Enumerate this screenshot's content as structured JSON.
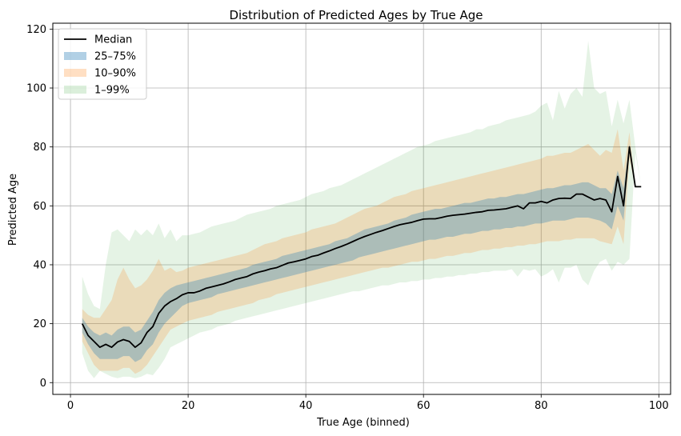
{
  "chart_data": {
    "type": "area",
    "title": "Distribution of Predicted Ages by True Age",
    "xlabel": "True Age (binned)",
    "ylabel": "Predicted Age",
    "xlim": [
      -3,
      102
    ],
    "ylim": [
      -4,
      122
    ],
    "xticks": [
      0,
      20,
      40,
      60,
      80,
      100
    ],
    "yticks": [
      0,
      20,
      40,
      60,
      80,
      100,
      120
    ],
    "grid": true,
    "legend_position": "top-left",
    "x": [
      2,
      3,
      4,
      5,
      6,
      7,
      8,
      9,
      10,
      11,
      12,
      13,
      14,
      15,
      16,
      17,
      18,
      19,
      20,
      21,
      22,
      23,
      24,
      25,
      26,
      27,
      28,
      29,
      30,
      31,
      32,
      33,
      34,
      35,
      36,
      37,
      38,
      39,
      40,
      41,
      42,
      43,
      44,
      45,
      46,
      47,
      48,
      49,
      50,
      51,
      52,
      53,
      54,
      55,
      56,
      57,
      58,
      59,
      60,
      61,
      62,
      63,
      64,
      65,
      66,
      67,
      68,
      69,
      70,
      71,
      72,
      73,
      74,
      75,
      76,
      77,
      78,
      79,
      80,
      81,
      82,
      83,
      84,
      85,
      86,
      87,
      88,
      89,
      90,
      91,
      92,
      93,
      94,
      95,
      96,
      97
    ],
    "series": [
      {
        "name": "Median",
        "kind": "line",
        "color": "#000000",
        "values": [
          20,
          16,
          14,
          12,
          13,
          12,
          13.8,
          14.6,
          14,
          12,
          13.5,
          17,
          19,
          23.5,
          26,
          27.5,
          28.5,
          29.8,
          30.5,
          30.5,
          31.1,
          32,
          32.5,
          33,
          33.5,
          34.2,
          35,
          35.5,
          36,
          36.9,
          37.5,
          38,
          38.6,
          39,
          39.8,
          40.6,
          41,
          41.5,
          42,
          42.8,
          43.2,
          44,
          44.7,
          45.5,
          46.2,
          47,
          47.9,
          48.8,
          49.6,
          50.3,
          51,
          51.6,
          52.3,
          53,
          53.6,
          54,
          54.4,
          55,
          55.5,
          55.6,
          55.6,
          56,
          56.5,
          56.8,
          57,
          57.2,
          57.5,
          57.8,
          58,
          58.5,
          58.6,
          58.8,
          59,
          59.5,
          60,
          59,
          61,
          61,
          61.5,
          61,
          62,
          62.5,
          62.6,
          62.5,
          64,
          64,
          63,
          62,
          62.5,
          62,
          58,
          70,
          60,
          80,
          66.5,
          66.5
        ]
      },
      {
        "name": "25–75%",
        "kind": "band",
        "color": "#1f77b4",
        "opacity": 0.3,
        "low": [
          17,
          13,
          10,
          8,
          8,
          8,
          8,
          9,
          9,
          7,
          8,
          11,
          13,
          17,
          20,
          22,
          24,
          26,
          27,
          27.5,
          28,
          28.5,
          29,
          30,
          30.5,
          31,
          31.5,
          32,
          32.5,
          33,
          33.5,
          34,
          34.5,
          35,
          35.5,
          36,
          36.5,
          37,
          37.5,
          38,
          38.5,
          39,
          39.5,
          40,
          40.5,
          41,
          41.5,
          42.5,
          43,
          43.5,
          44,
          44.5,
          45,
          45.5,
          46,
          46.5,
          47,
          47.5,
          48,
          48.5,
          48.5,
          49,
          49.5,
          49.5,
          50,
          50.5,
          50.5,
          51,
          51.5,
          51.5,
          52,
          52,
          52.5,
          52.5,
          53,
          53,
          53.5,
          54,
          54,
          54.5,
          55,
          55,
          55,
          55.5,
          56,
          56,
          56,
          55.5,
          55,
          54,
          52,
          60,
          55,
          78,
          66.5,
          66.5
        ],
        "high": [
          22,
          19,
          17,
          16,
          17,
          16,
          18,
          19,
          19,
          17,
          18,
          21,
          24,
          28,
          30.5,
          32,
          33,
          33.5,
          34,
          34.5,
          35,
          35.5,
          36,
          36.5,
          37,
          37.5,
          38,
          38.5,
          39,
          40,
          40.5,
          41,
          41.5,
          42,
          43,
          43.5,
          44,
          44.5,
          45,
          45.5,
          46,
          46.5,
          47,
          48,
          48.5,
          49,
          50,
          51,
          52,
          52.5,
          53,
          53.5,
          54,
          55,
          55.5,
          56,
          57,
          57.5,
          58,
          58.5,
          59,
          59,
          59.5,
          60,
          60.5,
          61,
          61,
          61.5,
          62,
          62.5,
          62.5,
          63,
          63,
          63.5,
          64,
          64,
          64.5,
          65,
          65.5,
          66,
          66,
          66.5,
          67,
          67,
          67.5,
          68,
          68,
          67,
          66,
          66,
          64,
          72,
          66,
          81,
          66.5,
          66.5
        ]
      },
      {
        "name": "10–90%",
        "kind": "band",
        "color": "#ff7f0e",
        "opacity": 0.2,
        "low": [
          14,
          10,
          6,
          4,
          4,
          4,
          4,
          5,
          5,
          3,
          4,
          6,
          9,
          12,
          15,
          18,
          19,
          20,
          21,
          21.5,
          22,
          22.5,
          23,
          24,
          24.5,
          25,
          25.5,
          26,
          26.5,
          27,
          28,
          28.5,
          29,
          30,
          30.5,
          31,
          31.5,
          32,
          32.5,
          33,
          33.5,
          34,
          34.5,
          35,
          35.5,
          36,
          36.5,
          37,
          37.5,
          38,
          38.5,
          39,
          39,
          39.5,
          40,
          40.5,
          41,
          41,
          41.5,
          42,
          42,
          42.5,
          43,
          43,
          43.5,
          44,
          44,
          44.5,
          45,
          45,
          45.5,
          45.5,
          46,
          46,
          46.5,
          46.5,
          47,
          47,
          47.5,
          48,
          48,
          48,
          48.5,
          48.5,
          49,
          49,
          49,
          49,
          48,
          47.5,
          47,
          53,
          47,
          76,
          66.5,
          66.5
        ],
        "high": [
          25,
          23,
          22,
          22,
          25,
          28,
          35,
          39,
          35,
          32,
          33,
          35,
          38,
          42,
          38,
          39,
          37.5,
          38,
          39,
          39.5,
          40,
          40.5,
          41,
          41.5,
          42,
          42.5,
          43,
          43.5,
          44,
          45,
          46,
          47,
          47.5,
          48,
          49,
          49.5,
          50,
          50.5,
          51,
          52,
          52.5,
          53,
          53.5,
          54,
          55,
          56,
          57,
          58,
          59,
          59.5,
          60,
          61,
          62,
          63,
          63.5,
          64,
          65,
          65.5,
          66,
          66.5,
          67,
          67.5,
          68,
          68.5,
          69,
          69.5,
          70,
          70.5,
          71,
          71.5,
          72,
          72.5,
          73,
          73.5,
          74,
          74.5,
          75,
          75.5,
          76,
          77,
          77,
          77.5,
          78,
          78,
          79,
          80,
          81,
          79,
          77,
          79,
          78,
          86,
          72,
          85,
          66.5,
          66.5
        ]
      },
      {
        "name": "1–99%",
        "kind": "band",
        "color": "#2ca02c",
        "opacity": 0.12,
        "low": [
          10,
          4,
          1.5,
          4,
          3,
          2,
          1.5,
          2,
          2,
          1.5,
          2,
          3,
          2.5,
          5,
          8,
          12,
          13,
          14,
          15,
          16,
          17,
          17.5,
          18,
          19,
          19.5,
          20,
          21,
          21.5,
          22,
          22.5,
          23,
          23.5,
          24,
          24.5,
          25,
          25.5,
          26,
          26.5,
          27,
          27.5,
          28,
          28.5,
          29,
          29.5,
          30,
          30.5,
          31,
          31,
          31.5,
          32,
          32.5,
          33,
          33,
          33.5,
          34,
          34,
          34.5,
          34.5,
          35,
          35,
          35.5,
          35.5,
          36,
          36,
          36.5,
          36.5,
          37,
          37,
          37.5,
          37.5,
          38,
          38,
          38,
          38.5,
          36,
          38.5,
          38,
          38.5,
          36,
          37,
          38.5,
          34,
          39,
          39,
          40,
          35,
          33,
          38,
          41,
          42,
          38,
          41,
          40,
          42,
          78,
          66.5
        ],
        "high": [
          36,
          30,
          26,
          25,
          40,
          51,
          52,
          50,
          48,
          52,
          50,
          52,
          50,
          54,
          49,
          52,
          48,
          50,
          50,
          50.5,
          51,
          52,
          53,
          53.5,
          54,
          54.5,
          55,
          56,
          57,
          57.5,
          58,
          58.5,
          59,
          60,
          60.5,
          61,
          61.5,
          62,
          63,
          64,
          64.5,
          65,
          66,
          66.5,
          67,
          68,
          69,
          70,
          71,
          72,
          73,
          74,
          75,
          76,
          77,
          78,
          79,
          80,
          80.5,
          81,
          82,
          82.5,
          83,
          83.5,
          84,
          84.5,
          85,
          86,
          86,
          87,
          87.5,
          88,
          89,
          89.5,
          90,
          90.5,
          91,
          92,
          94,
          95,
          89,
          99,
          93,
          98,
          100,
          97,
          116,
          100,
          98,
          99,
          87,
          96,
          88,
          96,
          80,
          66.5
        ]
      }
    ],
    "legend": [
      "Median",
      "25–75%",
      "10–90%",
      "1–99%"
    ]
  }
}
